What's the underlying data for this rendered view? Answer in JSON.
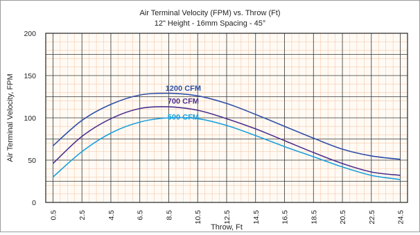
{
  "chart_data": {
    "type": "line",
    "title": "Air Terminal Velocity (FPM) vs. Throw (Ft)",
    "subtitle": "12\" Height - 16mm Spacing - 45°",
    "xlabel": "Throw, Ft",
    "ylabel": "Air Terminal Velocity, FPM",
    "xlim": [
      0,
      25
    ],
    "ylim": [
      0,
      200
    ],
    "x_ticks": [
      "0.5",
      "2.5",
      "4.5",
      "6.5",
      "8.5",
      "10.5",
      "12.5",
      "14.5",
      "16.5",
      "18.5",
      "20.5",
      "22.5",
      "24.5"
    ],
    "y_ticks": [
      "0",
      "50",
      "100",
      "150",
      "200"
    ],
    "grid": true,
    "x": [
      0.5,
      2.5,
      4.5,
      6.5,
      8.5,
      10.5,
      12.5,
      14.5,
      16.5,
      18.5,
      20.5,
      22.5,
      24.5
    ],
    "series": [
      {
        "name": "1200 CFM",
        "color": "#2e4fa8",
        "values": [
          67,
          97,
          116,
          127,
          129,
          126,
          117,
          104,
          90,
          76,
          63,
          55,
          51
        ]
      },
      {
        "name": "700 CFM",
        "color": "#4a2f8f",
        "values": [
          46,
          78,
          99,
          111,
          113,
          109,
          99,
          87,
          73,
          59,
          46,
          36,
          32
        ]
      },
      {
        "name": "500 CFM",
        "color": "#1aa0dc",
        "values": [
          30,
          60,
          82,
          95,
          100,
          99,
          91,
          79,
          66,
          54,
          42,
          32,
          27
        ]
      }
    ]
  }
}
